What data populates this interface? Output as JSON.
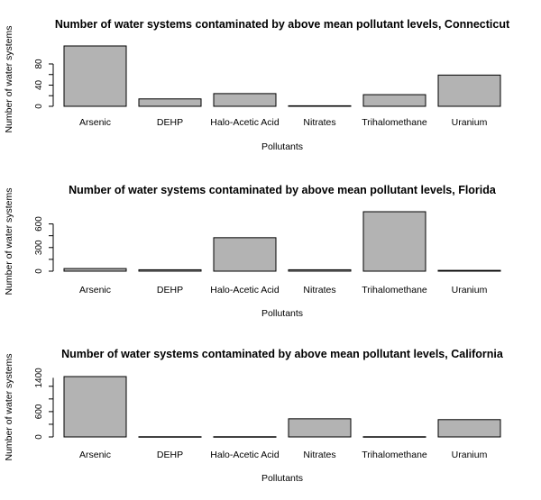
{
  "colors": {
    "bar_fill": "#b3b3b3",
    "bar_stroke": "#000000",
    "axis": "#000000",
    "background": "#ffffff"
  },
  "chart_data": [
    {
      "type": "bar",
      "title": "Number of water systems contaminated by above mean pollutant levels, Connecticut",
      "xlabel": "Pollutants",
      "ylabel": "Number of water systems",
      "categories": [
        "Arsenic",
        "DEHP",
        "Halo-Acetic Acid",
        "Nitrates",
        "Trihalomethane",
        "Uranium"
      ],
      "values": [
        114,
        14,
        24,
        1,
        22,
        59
      ],
      "ylim": [
        0,
        114
      ],
      "yticks": [
        "0",
        "40",
        "80"
      ],
      "grid": false
    },
    {
      "type": "bar",
      "title": "Number of water systems contaminated by above mean pollutant levels, Florida",
      "xlabel": "Pollutants",
      "ylabel": "Number of water systems",
      "categories": [
        "Arsenic",
        "DEHP",
        "Halo-Acetic Acid",
        "Nitrates",
        "Trihalomethane",
        "Uranium"
      ],
      "values": [
        33,
        18,
        425,
        18,
        755,
        10
      ],
      "ylim": [
        0,
        755
      ],
      "yticks": [
        "0",
        "300",
        "600"
      ],
      "grid": false
    },
    {
      "type": "bar",
      "title": "Number of water systems contaminated by above mean pollutant levels, California",
      "xlabel": "Pollutants",
      "ylabel": "Number of water systems",
      "categories": [
        "Arsenic",
        "DEHP",
        "Halo-Acetic Acid",
        "Nitrates",
        "Trihalomethane",
        "Uranium"
      ],
      "values": [
        1430,
        5,
        5,
        430,
        5,
        410
      ],
      "ylim": [
        0,
        1430
      ],
      "yticks": [
        "0",
        "600",
        "1400"
      ],
      "grid": false
    }
  ]
}
